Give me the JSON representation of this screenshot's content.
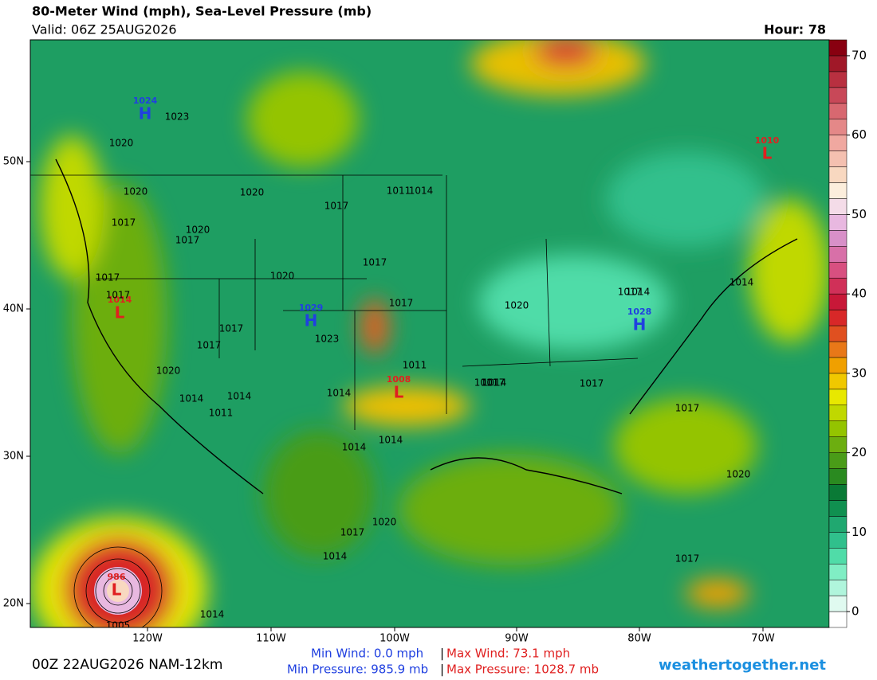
{
  "header": {
    "title": "80-Meter Wind (mph), Sea-Level Pressure (mb)",
    "valid": "Valid: 06Z 25AUG2026",
    "hour": "Hour: 78"
  },
  "colorbar": {
    "clim": [
      -2,
      72
    ],
    "ticks": [
      0,
      10,
      20,
      30,
      40,
      50,
      60,
      70
    ],
    "colors": [
      "#ffffff",
      "#e0faf0",
      "#b0f5dc",
      "#80eec4",
      "#50dca8",
      "#30c08c",
      "#20a870",
      "#109050",
      "#0a7a36",
      "#2a8a20",
      "#4a9c18",
      "#6cae10",
      "#94c400",
      "#c0d800",
      "#e8e800",
      "#f0c800",
      "#f0a000",
      "#e87818",
      "#e05020",
      "#d82828",
      "#c81838",
      "#d03058",
      "#d85080",
      "#d870a8",
      "#d890c8",
      "#e8b8e0",
      "#f4dce8",
      "#fceedc",
      "#f8d8c0",
      "#f4c0b0",
      "#f0a8a0",
      "#e48888",
      "#d86870",
      "#c84858",
      "#b83040",
      "#a01828",
      "#880010"
    ]
  },
  "lon_labels": [
    "120W",
    "110W",
    "100W",
    "90W",
    "80W",
    "70W"
  ],
  "lat_labels": [
    "50N",
    "40N",
    "30N",
    "20N"
  ],
  "pressure_centers": [
    {
      "kind": "H",
      "value": 1024
    },
    {
      "kind": "L",
      "value": 1010
    },
    {
      "kind": "L",
      "value": 1014
    },
    {
      "kind": "H",
      "value": 1029
    },
    {
      "kind": "H",
      "value": 1028
    },
    {
      "kind": "L",
      "value": 1008
    },
    {
      "kind": "L",
      "value": 986
    }
  ],
  "isobar_labels": [
    1023,
    1020,
    1020,
    1017,
    1017,
    1020,
    1020,
    1017,
    1017,
    1017,
    1017,
    1020,
    1023,
    1017,
    1017,
    1020,
    1014,
    1014,
    1011,
    1014,
    1014,
    1014,
    1011,
    1011,
    1014,
    1017,
    1011,
    1017,
    1017,
    1020,
    1014,
    1014,
    1014,
    1017,
    1020,
    1017,
    1020,
    1017,
    1014,
    1005,
    1017,
    1014
  ],
  "footer": {
    "run": "00Z 22AUG2026 NAM-12km",
    "min_wind": "Min Wind:   0.0 mph",
    "max_wind": "Max Wind: 73.1 mph",
    "min_pressure": "Min Pressure: 985.9 mb",
    "max_pressure": "Max Pressure: 1028.7 mb",
    "separator": "|",
    "site": "weathertogether.net"
  }
}
